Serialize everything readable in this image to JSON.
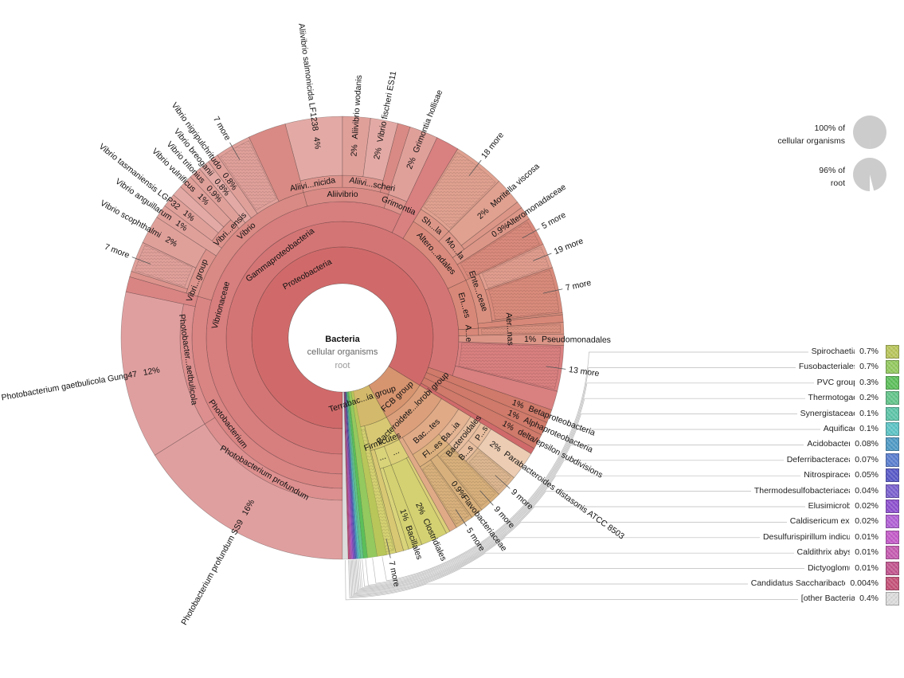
{
  "center": {
    "title": "Bacteria",
    "parent": "cellular organisms",
    "root": "root"
  },
  "summary": [
    {
      "pct": "100% of",
      "name": "cellular organisms",
      "fraction": 1.0
    },
    {
      "pct": "96% of",
      "name": "root",
      "fraction": 0.96
    }
  ],
  "palette": {
    "proteo": "#d06a6a",
    "gamma": "#d47575",
    "gammaLeaf": "#d98080",
    "vibrionaceae": "#d77e7e",
    "photoGenus": "#d98584",
    "photoSp": "#dc8f8e",
    "photoLeaf": "#e09f9f",
    "vibrioGenus": "#d98a84",
    "vibrioSub": "#dc938c",
    "vibrioLeaf": "#e0a09a",
    "vibrioLeafAlt": "#e3aaa5",
    "alteroOrder": "#d98a7c",
    "alteroFam": "#dc9687",
    "alteroLeaf": "#e0a190",
    "entero": "#d88878",
    "enteroFam": "#da907f",
    "enteroLeaf": "#d98b7b",
    "enteroLeafLight": "#e09d8e",
    "betaLike": "#cf7a6a",
    "fcb": "#d6946f",
    "bactChl": "#dba07b",
    "bacteroidetes": "#e0aa87",
    "bacteroidia": "#e4b493",
    "bacteroidales": "#e7be9f",
    "paraLeaf": "#ecccb2",
    "bactLeaf": "#dcb690",
    "flavo": "#dcb07e",
    "flavoLeaf": "#d8b07c",
    "terra": "#d3b96b",
    "firmicutes": "#d8c873",
    "clostridia": "#dbcf79",
    "bacilli": "#d9d47a",
    "firmLeaf": "#d4d172"
  },
  "rings": {
    "proteobacteria": "Proteobacteria",
    "gammaproteobacteria": "Gammaproteobacteria",
    "vibrionaceae": "Vibrionaceae",
    "photobacterium": "Photobacterium",
    "photobacterium_profundum": "Photobacterium profundum",
    "photobacter_aetbulicola": "Photobacter...aetbulicola",
    "vibrio": "Vibrio",
    "vibri_group": "Vibri...group",
    "vibri_ensis": "Vibri...ensis",
    "aliivibrio": "Aliivibrio",
    "aliivi_nicida": "Aliivi...nicida",
    "aliivi_scheri": "Aliivi...scheri",
    "grimontia": "Grimontia",
    "altero_adales": "Altero...adales",
    "sh_la": "Sh...la",
    "mo_la": "Mo...la",
    "ente_ceae": "Ente...ceae",
    "en_es": "En...es",
    "a_e": "A...e",
    "aer_nas": "Aer...nas",
    "fcb_group": "FCB group",
    "bacteroidete_lorobi_group": "Bacteroidete...lorobi group",
    "bac_tes": "Bac...tes",
    "ba_ia": "Ba...ia",
    "bacteroidales": "Bacteroidales",
    "b_s": "B...s",
    "p_s": "P...s",
    "fl_es": "Fl...es",
    "terrabac_ia_group": "Terrabac...ia group",
    "firmicutes": "Firmicutes",
    "clostridia_collapsed": "...",
    "bacilli_collapsed": "..."
  },
  "leaves": {
    "ss9": {
      "name": "Photobacterium profundum SS9",
      "pct": "16%"
    },
    "gung47": {
      "name": "Photobacterium gaetbulicola Gung47",
      "pct": "12%"
    },
    "vibri_group_more": {
      "name": "7 more"
    },
    "scophthalmi": {
      "name": "Vibrio scophthalmi",
      "pct": "2%"
    },
    "anguillarum": {
      "name": "Vibrio anguillarum",
      "pct": "1%"
    },
    "tasmaniensis": {
      "name": "Vibrio tasmaniensis LGP32",
      "pct": "1%"
    },
    "vulnificus": {
      "name": "Vibrio vulnificus",
      "pct": "1%"
    },
    "tritonius": {
      "name": "Vibrio tritonius",
      "pct": "0.9%"
    },
    "breoganii": {
      "name": "Vibrio breoganii",
      "pct": "0.8%"
    },
    "nigripulchritudo": {
      "name": "Vibrio nigripulchritudo",
      "pct": "0.8%"
    },
    "vibrio_more": {
      "name": "7 more"
    },
    "salmonicida": {
      "name": "Aliivibrio salmonicida LF1238",
      "pct": "4%"
    },
    "wodanis": {
      "name": "Aliivibrio wodanis",
      "pct": "2%"
    },
    "fischeri": {
      "name": "Vibrio fischeri ES11",
      "pct": "2%"
    },
    "hollisae": {
      "name": "Grimontia hollisae",
      "pct": "2%"
    },
    "shewanella_more": {
      "name": "18 more"
    },
    "moritella": {
      "name": "Moritella viscosa",
      "pct": "2%"
    },
    "alteromonadaceae": {
      "name": "Alteromonadaceae",
      "pct": "0.9%"
    },
    "altero_more": {
      "name": "5 more"
    },
    "entero_more_19": {
      "name": "19 more"
    },
    "entero_more_7": {
      "name": "7 more"
    },
    "pseudomonadales": {
      "name": "Pseudomonadales",
      "pct": "1%"
    },
    "gamma_more": {
      "name": "13 more"
    },
    "beta": {
      "name": "Betaproteobacteria",
      "pct": "1%"
    },
    "alpha": {
      "name": "Alphaproteobacteria",
      "pct": "1%"
    },
    "delta": {
      "name": "delta/epsilon subdivisions",
      "pct": "1%"
    },
    "parabacteroides": {
      "name": "Parabacteroides distasonis ATCC 8503",
      "pct": "2%"
    },
    "bacteroidales_more": {
      "name": "9 more"
    },
    "flavo_more_9": {
      "name": "9 more"
    },
    "flavobacteriaceae": {
      "name": "Flavobacteriaceae",
      "pct": "0.9%"
    },
    "flavo_more_5": {
      "name": "5 more"
    },
    "clostridiales": {
      "name": "Clostridiales",
      "pct": "2%"
    },
    "bacillales": {
      "name": "Bacillales",
      "pct": "1%"
    },
    "terra_more": {
      "name": "7 more"
    }
  },
  "legend": [
    {
      "name": "Spirochaetia",
      "pct": "0.7%",
      "color": "#b8c65a"
    },
    {
      "name": "Fusobacteriales",
      "pct": "0.7%",
      "color": "#93c95e"
    },
    {
      "name": "PVC group",
      "pct": "0.3%",
      "color": "#5cbf5a"
    },
    {
      "name": "Thermotogae",
      "pct": "0.2%",
      "color": "#62c58a"
    },
    {
      "name": "Synergistaceae",
      "pct": "0.1%",
      "color": "#5cc5a8"
    },
    {
      "name": "Aquificae",
      "pct": "0.1%",
      "color": "#5bc4c6"
    },
    {
      "name": "Acidobacteria",
      "pct": "0.08%",
      "color": "#4e9ac6"
    },
    {
      "name": "Deferribacteraceae",
      "pct": "0.07%",
      "color": "#5a7ed0"
    },
    {
      "name": "Nitrospiraceae",
      "pct": "0.05%",
      "color": "#5858c8"
    },
    {
      "name": "Thermodesulfobacteriaceae",
      "pct": "0.04%",
      "color": "#7a60cf"
    },
    {
      "name": "Elusimicrobia",
      "pct": "0.02%",
      "color": "#8d4fcf"
    },
    {
      "name": "Caldisericum exile",
      "pct": "0.02%",
      "color": "#b15fd6"
    },
    {
      "name": "Desulfurispirillum indicum",
      "pct": "0.01%",
      "color": "#c45ac9"
    },
    {
      "name": "Caldithrix abyssi",
      "pct": "0.01%",
      "color": "#c65ab1"
    },
    {
      "name": "Dictyoglomus",
      "pct": "0.01%",
      "color": "#c2548e"
    },
    {
      "name": "Candidatus Saccharibacteria",
      "pct": "0.004%",
      "color": "#c55078"
    },
    {
      "name": "[other Bacteria]",
      "pct": "0.4%",
      "color": "#dcdcdc"
    }
  ]
}
